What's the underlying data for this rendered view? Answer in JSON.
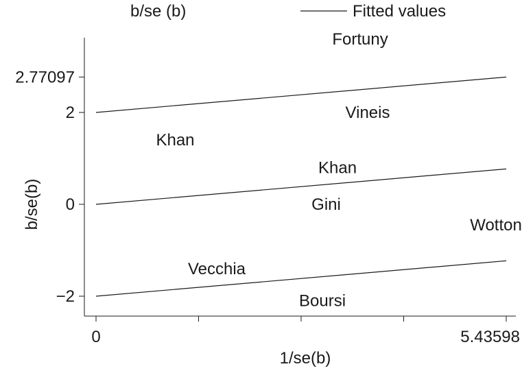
{
  "chart_data": {
    "type": "scatter",
    "title": "",
    "xlabel": "1/se(b)",
    "ylabel": "b/se(b)",
    "xlim": [
      0,
      5.43598
    ],
    "ylim": [
      -2.4,
      3.6
    ],
    "x_ticks": [
      0,
      1.359,
      2.718,
      4.077,
      5.43598
    ],
    "x_tick_labels": [
      "0",
      "",
      "",
      "",
      "5.43598"
    ],
    "y_ticks": [
      -2,
      0,
      2,
      2.77097
    ],
    "y_tick_labels": [
      "−2",
      "0",
      "2",
      "2.77097"
    ],
    "legend": {
      "position": "top",
      "entries": [
        {
          "label": "b/se (b)",
          "marker": "text"
        },
        {
          "label": "Fitted values",
          "marker": "line"
        }
      ]
    },
    "grid": false,
    "points": [
      {
        "label": "Fortuny",
        "x": 3.5,
        "y": 3.6
      },
      {
        "label": "Vineis",
        "x": 3.6,
        "y": 2.0
      },
      {
        "label": "Khan",
        "x": 1.05,
        "y": 1.4
      },
      {
        "label": "Khan",
        "x": 3.2,
        "y": 0.8
      },
      {
        "label": "Gini",
        "x": 3.05,
        "y": 0.0
      },
      {
        "label": "Wotton",
        "x": 5.3,
        "y": -0.45
      },
      {
        "label": "Vecchia",
        "x": 1.6,
        "y": -1.4
      },
      {
        "label": "Boursi",
        "x": 3.0,
        "y": -2.1
      }
    ],
    "series": [
      {
        "name": "Fitted values",
        "type": "line",
        "x": [
          0,
          5.43598
        ],
        "y": [
          0,
          0.77097
        ]
      },
      {
        "name": "Fitted values",
        "type": "line",
        "x": [
          0,
          5.43598
        ],
        "y": [
          2,
          2.77097
        ]
      },
      {
        "name": "Fitted values",
        "type": "line",
        "x": [
          0,
          5.43598
        ],
        "y": [
          -2,
          -1.22903
        ]
      }
    ]
  }
}
